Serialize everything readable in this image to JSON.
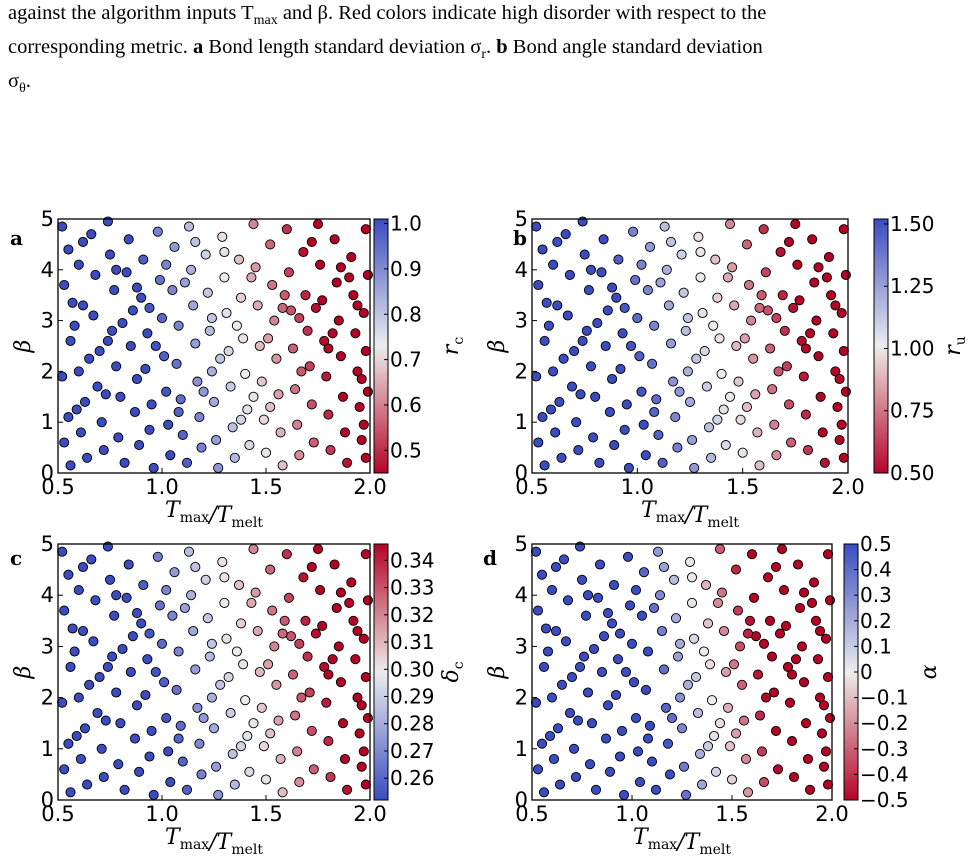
{
  "caption": {
    "line1": "against the algorithm inputs T",
    "line1_sub": "max",
    "line1_mid": " and β. Red colors indicate high disorder with respect to the",
    "line2_pre": "corresponding metric. ",
    "label_a": "a",
    "line2_a": " Bond length standard deviation σ",
    "line2_a_sub": "r",
    "line2_mid": ". ",
    "label_b": "b",
    "line2_b": " Bond angle standard deviation",
    "line3": "σ",
    "line3_sub": "θ",
    "line3_end": "."
  },
  "colors": {
    "blue": "#3b4cc0",
    "white": "#ededed",
    "red": "#b40426",
    "marker_edge": "#000000"
  },
  "chart_data": [
    {
      "panel": "a",
      "type": "scatter",
      "xlabel": "T_max/T_melt",
      "ylabel": "β",
      "xlim": [
        0.5,
        2.0
      ],
      "ylim": [
        0,
        5
      ],
      "xticks": [
        "0.5",
        "1.0",
        "1.5",
        "2.0"
      ],
      "yticks": [
        "0",
        "1",
        "2",
        "3",
        "4",
        "5"
      ],
      "colorbar": {
        "label": "r_c",
        "range": [
          0.45,
          1.01
        ],
        "ticks": [
          "0.5",
          "0.6",
          "0.7",
          "0.8",
          "0.9",
          "1.0"
        ],
        "tick_values": [
          0.5,
          0.6,
          0.7,
          0.8,
          0.9,
          1.0
        ],
        "high_is_red": false
      }
    },
    {
      "panel": "b",
      "type": "scatter",
      "xlabel": "T_max/T_melt",
      "ylabel": "β",
      "xlim": [
        0.5,
        2.0
      ],
      "ylim": [
        0,
        5
      ],
      "xticks": [
        "0.5",
        "1.0",
        "1.5",
        "2.0"
      ],
      "yticks": [
        "0",
        "1",
        "2",
        "3",
        "4",
        "5"
      ],
      "colorbar": {
        "label": "r_u",
        "range": [
          0.5,
          1.52
        ],
        "ticks": [
          "0.50",
          "0.75",
          "1.00",
          "1.25",
          "1.50"
        ],
        "tick_values": [
          0.5,
          0.75,
          1.0,
          1.25,
          1.5
        ],
        "high_is_red": false
      }
    },
    {
      "panel": "c",
      "type": "scatter",
      "xlabel": "T_max/T_melt",
      "ylabel": "β",
      "xlim": [
        0.5,
        2.0
      ],
      "ylim": [
        0,
        5
      ],
      "xticks": [
        "0.5",
        "1.0",
        "1.5",
        "2.0"
      ],
      "yticks": [
        "0",
        "1",
        "2",
        "3",
        "4",
        "5"
      ],
      "colorbar": {
        "label": "δ_c",
        "range": [
          0.252,
          0.346
        ],
        "ticks": [
          "0.26",
          "0.27",
          "0.28",
          "0.29",
          "0.30",
          "0.31",
          "0.32",
          "0.33",
          "0.34"
        ],
        "tick_values": [
          0.26,
          0.27,
          0.28,
          0.29,
          0.3,
          0.31,
          0.32,
          0.33,
          0.34
        ],
        "high_is_red": true
      }
    },
    {
      "panel": "d",
      "type": "scatter",
      "xlabel": "T_max/T_melt",
      "ylabel": "β",
      "xlim": [
        0.5,
        2.0
      ],
      "ylim": [
        0,
        5
      ],
      "xticks": [
        "0.5",
        "1.0",
        "1.5",
        "2.0"
      ],
      "yticks": [
        "0",
        "1",
        "2",
        "3",
        "4",
        "5"
      ],
      "colorbar": {
        "label": "α",
        "range": [
          -0.5,
          0.5
        ],
        "ticks": [
          "−0.5",
          "−0.4",
          "−0.3",
          "−0.2",
          "−0.1",
          "0",
          "0.1",
          "0.2",
          "0.3",
          "0.4",
          "0.5"
        ],
        "tick_values": [
          -0.5,
          -0.4,
          -0.3,
          -0.2,
          -0.1,
          0,
          0.1,
          0.2,
          0.3,
          0.4,
          0.5
        ],
        "high_is_red": false
      }
    }
  ],
  "points": [
    [
      0.52,
      4.85
    ],
    [
      0.55,
      4.4
    ],
    [
      0.53,
      3.7
    ],
    [
      0.56,
      2.6
    ],
    [
      0.52,
      1.9
    ],
    [
      0.55,
      1.1
    ],
    [
      0.53,
      0.6
    ],
    [
      0.56,
      0.15
    ],
    [
      0.6,
      4.1
    ],
    [
      0.62,
      3.3
    ],
    [
      0.58,
      2.9
    ],
    [
      0.6,
      2.0
    ],
    [
      0.63,
      1.4
    ],
    [
      0.61,
      0.8
    ],
    [
      0.64,
      0.3
    ],
    [
      0.66,
      4.7
    ],
    [
      0.68,
      3.9
    ],
    [
      0.67,
      3.1
    ],
    [
      0.7,
      2.4
    ],
    [
      0.69,
      1.7
    ],
    [
      0.71,
      1.0
    ],
    [
      0.72,
      0.45
    ],
    [
      0.74,
      4.95
    ],
    [
      0.75,
      4.3
    ],
    [
      0.77,
      3.6
    ],
    [
      0.76,
      2.8
    ],
    [
      0.78,
      2.1
    ],
    [
      0.8,
      1.5
    ],
    [
      0.79,
      0.7
    ],
    [
      0.82,
      0.2
    ],
    [
      0.84,
      4.6
    ],
    [
      0.83,
      3.95
    ],
    [
      0.86,
      3.2
    ],
    [
      0.85,
      2.5
    ],
    [
      0.88,
      1.85
    ],
    [
      0.87,
      1.2
    ],
    [
      0.89,
      0.55
    ],
    [
      0.91,
      4.2
    ],
    [
      0.9,
      3.45
    ],
    [
      0.93,
      2.75
    ],
    [
      0.92,
      2.05
    ],
    [
      0.95,
      1.35
    ],
    [
      0.94,
      0.85
    ],
    [
      0.96,
      0.1
    ],
    [
      0.98,
      4.75
    ],
    [
      0.99,
      3.8
    ],
    [
      1.0,
      3.05
    ],
    [
      1.01,
      2.3
    ],
    [
      1.02,
      1.6
    ],
    [
      1.03,
      0.95
    ],
    [
      1.04,
      0.35
    ],
    [
      1.06,
      4.45
    ],
    [
      1.05,
      3.6
    ],
    [
      1.08,
      2.9
    ],
    [
      1.07,
      2.15
    ],
    [
      1.09,
      1.45
    ],
    [
      1.1,
      0.75
    ],
    [
      1.12,
      0.2
    ],
    [
      1.13,
      4.85
    ],
    [
      1.14,
      4.0
    ],
    [
      1.15,
      3.3
    ],
    [
      1.16,
      2.55
    ],
    [
      1.17,
      1.8
    ],
    [
      1.18,
      1.1
    ],
    [
      1.19,
      0.5
    ],
    [
      1.21,
      4.3
    ],
    [
      1.22,
      3.55
    ],
    [
      1.23,
      2.8
    ],
    [
      1.24,
      2.0
    ],
    [
      1.25,
      1.4
    ],
    [
      1.26,
      0.65
    ],
    [
      1.27,
      0.1
    ],
    [
      1.29,
      4.65
    ],
    [
      1.3,
      3.85
    ],
    [
      1.31,
      3.15
    ],
    [
      1.32,
      2.4
    ],
    [
      1.33,
      1.7
    ],
    [
      1.34,
      0.9
    ],
    [
      1.35,
      0.3
    ],
    [
      1.37,
      4.2
    ],
    [
      1.38,
      3.45
    ],
    [
      1.39,
      2.65
    ],
    [
      1.4,
      1.95
    ],
    [
      1.41,
      1.25
    ],
    [
      1.42,
      0.55
    ],
    [
      1.44,
      4.9
    ],
    [
      1.45,
      4.05
    ],
    [
      1.46,
      3.3
    ],
    [
      1.47,
      2.5
    ],
    [
      1.48,
      1.8
    ],
    [
      1.49,
      1.05
    ],
    [
      1.5,
      0.4
    ],
    [
      1.52,
      4.5
    ],
    [
      1.53,
      3.7
    ],
    [
      1.54,
      3.0
    ],
    [
      1.55,
      2.25
    ],
    [
      1.56,
      1.55
    ],
    [
      1.57,
      0.8
    ],
    [
      1.58,
      0.15
    ],
    [
      1.6,
      4.8
    ],
    [
      1.61,
      3.95
    ],
    [
      1.62,
      3.2
    ],
    [
      1.63,
      2.45
    ],
    [
      1.64,
      1.65
    ],
    [
      1.65,
      0.95
    ],
    [
      1.66,
      0.35
    ],
    [
      1.68,
      4.35
    ],
    [
      1.69,
      3.5
    ],
    [
      1.7,
      2.8
    ],
    [
      1.71,
      2.1
    ],
    [
      1.72,
      1.35
    ],
    [
      1.73,
      0.6
    ],
    [
      1.75,
      4.9
    ],
    [
      1.76,
      4.1
    ],
    [
      1.77,
      3.4
    ],
    [
      1.78,
      2.6
    ],
    [
      1.79,
      1.9
    ],
    [
      1.8,
      1.15
    ],
    [
      1.81,
      0.45
    ],
    [
      1.83,
      4.6
    ],
    [
      1.84,
      3.75
    ],
    [
      1.85,
      3.0
    ],
    [
      1.86,
      2.3
    ],
    [
      1.87,
      1.5
    ],
    [
      1.88,
      0.8
    ],
    [
      1.89,
      0.2
    ],
    [
      1.91,
      4.25
    ],
    [
      1.92,
      3.5
    ],
    [
      1.93,
      2.75
    ],
    [
      1.94,
      2.0
    ],
    [
      1.95,
      1.3
    ],
    [
      1.96,
      0.65
    ],
    [
      1.98,
      4.8
    ],
    [
      1.99,
      3.9
    ],
    [
      1.97,
      3.15
    ],
    [
      1.98,
      2.4
    ],
    [
      1.99,
      1.6
    ],
    [
      1.97,
      0.95
    ],
    [
      1.98,
      0.3
    ],
    [
      0.57,
      3.35
    ],
    [
      0.65,
      2.25
    ],
    [
      0.73,
      1.55
    ],
    [
      0.81,
      2.95
    ],
    [
      0.97,
      2.5
    ],
    [
      1.11,
      3.75
    ],
    [
      1.2,
      1.6
    ],
    [
      1.28,
      2.25
    ],
    [
      1.36,
      2.9
    ],
    [
      1.43,
      3.85
    ],
    [
      1.51,
      2.65
    ],
    [
      1.59,
      3.5
    ],
    [
      1.67,
      2.0
    ],
    [
      1.74,
      3.25
    ],
    [
      1.82,
      2.75
    ],
    [
      1.9,
      3.85
    ],
    [
      1.96,
      1.85
    ],
    [
      0.59,
      1.25
    ],
    [
      0.74,
      2.6
    ],
    [
      0.88,
      3.65
    ],
    [
      1.02,
      4.1
    ],
    [
      1.16,
      4.55
    ],
    [
      1.3,
      4.35
    ],
    [
      1.44,
      1.5
    ],
    [
      1.58,
      3.25
    ],
    [
      1.72,
      4.55
    ],
    [
      1.86,
      4.05
    ],
    [
      0.62,
      4.55
    ],
    [
      0.78,
      4.0
    ],
    [
      0.94,
      3.25
    ],
    [
      1.08,
      1.2
    ],
    [
      1.24,
      3.05
    ],
    [
      1.38,
      1.05
    ],
    [
      1.52,
      1.3
    ],
    [
      1.66,
      3.05
    ],
    [
      1.8,
      2.45
    ],
    [
      1.94,
      3.3
    ]
  ]
}
